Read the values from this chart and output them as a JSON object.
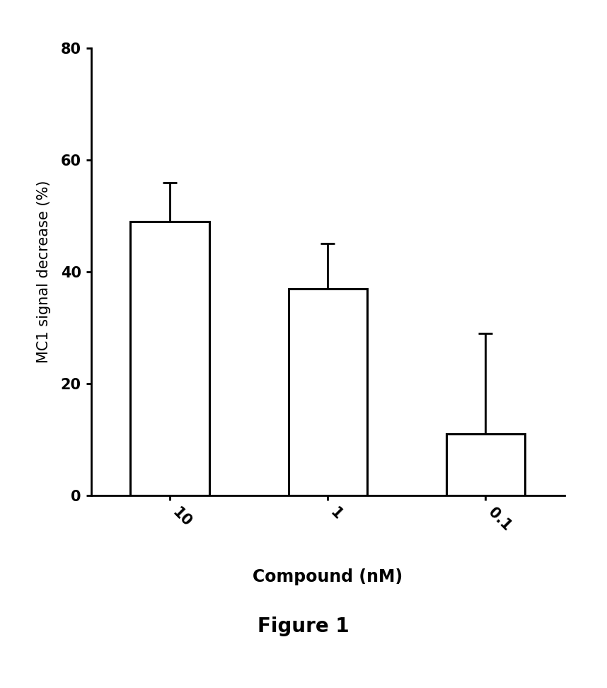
{
  "categories": [
    "10",
    "1",
    "0.1"
  ],
  "values": [
    49.0,
    37.0,
    11.0
  ],
  "errors_upper": [
    7.0,
    8.0,
    18.0
  ],
  "errors_lower": [
    0.0,
    0.0,
    0.0
  ],
  "bar_color": "#ffffff",
  "bar_edgecolor": "#000000",
  "bar_linewidth": 2.2,
  "bar_width": 0.5,
  "xlabel": "Compound (nM)",
  "ylabel": "MC1 signal decrease (%)",
  "ylim": [
    0,
    80
  ],
  "yticks": [
    0,
    20,
    40,
    60,
    80
  ],
  "caption": "Figure 1",
  "xlabel_fontsize": 17,
  "ylabel_fontsize": 15,
  "tick_fontsize": 15,
  "caption_fontsize": 20,
  "errorbar_capsize": 7,
  "errorbar_linewidth": 2.0,
  "background_color": "#ffffff",
  "spine_linewidth": 2.0,
  "xtick_rotation": -45
}
